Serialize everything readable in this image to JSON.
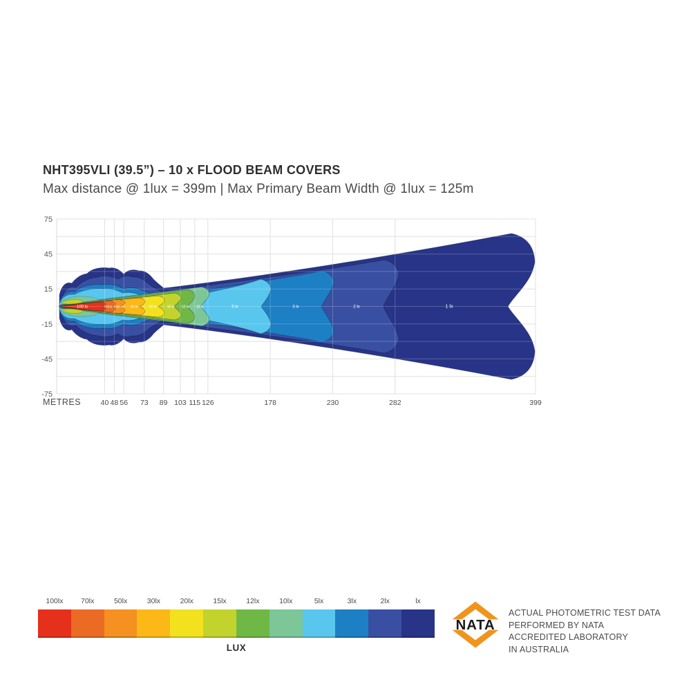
{
  "header": {
    "title": "NHT395VLI (39.5”) – 10 x FLOOD BEAM COVERS",
    "subtitle": "Max distance @ 1lux = 399m | Max Primary  Beam Width @ 1lux = 125m"
  },
  "chart_data": {
    "type": "area",
    "subtype": "photometric-beam-contour",
    "xlabel": "",
    "ylabel": "METRES",
    "y_unit_label": "METRES",
    "x_range_m": [
      0,
      399
    ],
    "y_range_m": [
      -75,
      75
    ],
    "y_ticks": [
      75,
      45,
      15,
      -15,
      -45,
      -75
    ],
    "y_grid_step_m": 15,
    "x_ticks": [
      40,
      48,
      56,
      73,
      89,
      103,
      115,
      126,
      178,
      230,
      282,
      399
    ],
    "grid": true,
    "max_distance_at_1lux_m": 399,
    "max_primary_beam_width_at_1lux_m": 125,
    "contours": [
      {
        "lux": 100,
        "label": "100 lx",
        "max_distance_m": 40,
        "color": "#e5311c"
      },
      {
        "lux": 70,
        "label": "70 lx",
        "max_distance_m": 48,
        "color": "#ec6b24"
      },
      {
        "lux": 50,
        "label": "50 lx",
        "max_distance_m": 56,
        "color": "#f59120"
      },
      {
        "lux": 30,
        "label": "30 lx",
        "max_distance_m": 73,
        "color": "#fbb817"
      },
      {
        "lux": 20,
        "label": "20 lx",
        "max_distance_m": 89,
        "color": "#f3e11e"
      },
      {
        "lux": 15,
        "label": "15 lx",
        "max_distance_m": 103,
        "color": "#c2d32d"
      },
      {
        "lux": 12,
        "label": "12 lx",
        "max_distance_m": 115,
        "color": "#70b845"
      },
      {
        "lux": 10,
        "label": "10 lx",
        "max_distance_m": 126,
        "color": "#7cc698"
      },
      {
        "lux": 5,
        "label": "5 lx",
        "max_distance_m": 178,
        "color": "#59c6ee"
      },
      {
        "lux": 3,
        "label": "3 lx",
        "max_distance_m": 230,
        "color": "#1d7fc4"
      },
      {
        "lux": 2,
        "label": "2 lx",
        "max_distance_m": 282,
        "color": "#3950a2"
      },
      {
        "lux": 1,
        "label": "1 lx",
        "max_distance_m": 399,
        "color": "#283487"
      }
    ]
  },
  "legend": {
    "caption": "LUX",
    "items": [
      {
        "label": "100lx",
        "color": "#e5311c"
      },
      {
        "label": "70lx",
        "color": "#ec6b24"
      },
      {
        "label": "50lx",
        "color": "#f59120"
      },
      {
        "label": "30lx",
        "color": "#fbb817"
      },
      {
        "label": "20lx",
        "color": "#f3e11e"
      },
      {
        "label": "15lx",
        "color": "#c2d32d"
      },
      {
        "label": "12lx",
        "color": "#70b845"
      },
      {
        "label": "10lx",
        "color": "#7cc698"
      },
      {
        "label": "5lx",
        "color": "#59c6ee"
      },
      {
        "label": "3lx",
        "color": "#1d7fc4"
      },
      {
        "label": "2lx",
        "color": "#3950a2"
      },
      {
        "label": "lx",
        "color": "#283487"
      }
    ]
  },
  "nata": {
    "logo_text": "NATA",
    "accent_color": "#f0941c",
    "lines": [
      "ACTUAL PHOTOMETRIC TEST DATA",
      "PERFORMED BY NATA",
      "ACCREDITED LABORATORY",
      "IN AUSTRALIA"
    ]
  }
}
